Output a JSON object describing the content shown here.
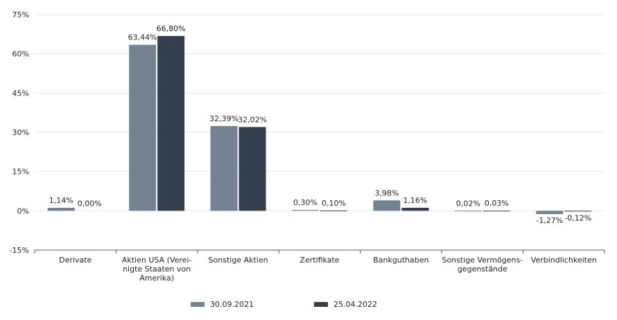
{
  "chart_data": {
    "type": "bar",
    "categories": [
      [
        "Derivate"
      ],
      [
        "Aktien USA (Verei-",
        "nigte Staaten von",
        "Amerika)"
      ],
      [
        "Sonstige Aktien"
      ],
      [
        "Zertifikate"
      ],
      [
        "Bankguthaben"
      ],
      [
        "Sonstige Vermögens-",
        "gegenstände"
      ],
      [
        "Verbindlichkeiten"
      ]
    ],
    "series": [
      {
        "name": "30.09.2021",
        "color": "#748394",
        "values": [
          1.14,
          63.44,
          32.39,
          0.3,
          3.98,
          0.02,
          -1.27
        ],
        "labels": [
          "1,14%",
          "63,44%",
          "32,39%",
          "0,30%",
          "3,98%",
          "0,02%",
          "-1,27%"
        ]
      },
      {
        "name": "25.04.2022",
        "color": "#333f4f",
        "values": [
          0.0,
          66.8,
          32.02,
          0.1,
          1.16,
          0.03,
          -0.12
        ],
        "labels": [
          "0,00%",
          "66,80%",
          "32,02%",
          "0,10%",
          "1,16%",
          "0,03%",
          "-0,12%"
        ]
      }
    ],
    "y_ticks": [
      -15,
      0,
      15,
      30,
      45,
      60,
      75
    ],
    "y_tick_labels": [
      "-15%",
      "0%",
      "15%",
      "30%",
      "45%",
      "60%",
      "75%"
    ],
    "ylim": [
      -15,
      75
    ],
    "grid": true,
    "legend_position": "bottom-center"
  }
}
